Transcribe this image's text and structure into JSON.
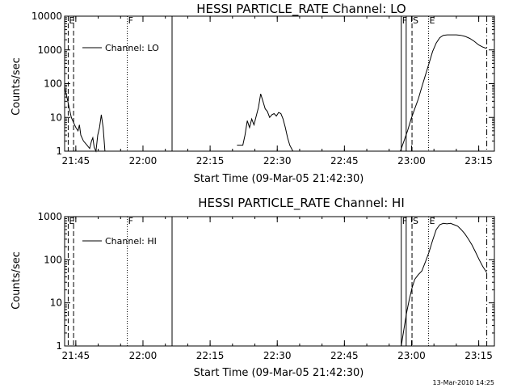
{
  "footer": {
    "timestamp": "13-Mar-2010 14:25"
  },
  "chart_data": [
    {
      "type": "line",
      "title": "HESSI PARTICLE_RATE Channel: LO",
      "xlabel": "Start Time (09-Mar-05 21:42:30)",
      "ylabel": "Counts/sec",
      "scale": "log",
      "xlim_minutes": [
        0,
        96
      ],
      "ylim": [
        1,
        10000
      ],
      "yticks": [
        {
          "value": 1,
          "label": "1"
        },
        {
          "value": 10,
          "label": "10"
        },
        {
          "value": 100,
          "label": "100"
        },
        {
          "value": 1000,
          "label": "1000"
        },
        {
          "value": 10000,
          "label": "10000"
        }
      ],
      "xticks": [
        {
          "minute": 2.5,
          "label": "21:45"
        },
        {
          "minute": 17.5,
          "label": "22:00"
        },
        {
          "minute": 32.5,
          "label": "22:15"
        },
        {
          "minute": 47.5,
          "label": "22:30"
        },
        {
          "minute": 62.5,
          "label": "22:45"
        },
        {
          "minute": 77.5,
          "label": "23:00"
        },
        {
          "minute": 92.5,
          "label": "23:15"
        }
      ],
      "legend": {
        "label": "Channel: LO",
        "position": "top-left"
      },
      "events": [
        {
          "minute": 0.8,
          "style": "dashed",
          "label": "E"
        },
        {
          "minute": 2.0,
          "style": "dashed",
          "label": ""
        },
        {
          "minute": 14.0,
          "style": "dotted",
          "label": "F"
        },
        {
          "minute": 24.0,
          "style": "solid",
          "label": ""
        },
        {
          "minute": 75.2,
          "style": "solid",
          "label": "F"
        },
        {
          "minute": 76.3,
          "style": "solid",
          "label": ""
        },
        {
          "minute": 77.6,
          "style": "dashed",
          "label": "S"
        },
        {
          "minute": 81.3,
          "style": "dotted",
          "label": "E"
        },
        {
          "minute": 94.3,
          "style": "dashdot",
          "label": ""
        }
      ],
      "series": [
        {
          "name": "Channel: LO",
          "segments": [
            [
              [
                0.0,
                80
              ],
              [
                0.5,
                40
              ],
              [
                1.0,
                20
              ],
              [
                1.5,
                10
              ],
              [
                2.0,
                7
              ],
              [
                2.5,
                5
              ],
              [
                3.0,
                4
              ],
              [
                3.3,
                6
              ],
              [
                3.6,
                3
              ],
              [
                4.2,
                2
              ],
              [
                5.0,
                1.5
              ],
              [
                5.6,
                1.2
              ],
              [
                6.0,
                2
              ],
              [
                6.3,
                2.5
              ],
              [
                6.6,
                1.3
              ],
              [
                7.0,
                1
              ],
              [
                7.4,
                3
              ],
              [
                7.8,
                5
              ],
              [
                8.2,
                12
              ],
              [
                8.6,
                5
              ],
              [
                9.0,
                1
              ]
            ],
            [
              [
                38.5,
                1.5
              ],
              [
                39.8,
                1.5
              ],
              [
                40.3,
                3
              ],
              [
                40.8,
                8
              ],
              [
                41.3,
                5
              ],
              [
                41.8,
                9
              ],
              [
                42.3,
                6
              ],
              [
                42.8,
                11
              ],
              [
                43.3,
                20
              ],
              [
                43.8,
                50
              ],
              [
                44.3,
                30
              ],
              [
                44.8,
                18
              ],
              [
                45.3,
                15
              ],
              [
                45.8,
                10
              ],
              [
                46.3,
                12
              ],
              [
                46.8,
                13
              ],
              [
                47.3,
                11
              ],
              [
                47.8,
                14
              ],
              [
                48.3,
                13
              ],
              [
                48.8,
                9
              ],
              [
                49.3,
                5
              ],
              [
                49.8,
                2.5
              ],
              [
                50.3,
                1.5
              ],
              [
                51.0,
                1
              ]
            ],
            [
              [
                75.0,
                1
              ],
              [
                75.8,
                2
              ],
              [
                76.6,
                4
              ],
              [
                77.4,
                9
              ],
              [
                78.2,
                18
              ],
              [
                79.0,
                35
              ],
              [
                79.8,
                80
              ],
              [
                80.6,
                180
              ],
              [
                81.4,
                400
              ],
              [
                82.2,
                900
              ],
              [
                83.0,
                1600
              ],
              [
                83.8,
                2300
              ],
              [
                84.6,
                2700
              ],
              [
                85.5,
                2800
              ],
              [
                86.5,
                2800
              ],
              [
                87.5,
                2800
              ],
              [
                88.5,
                2700
              ],
              [
                89.5,
                2500
              ],
              [
                90.5,
                2200
              ],
              [
                91.5,
                1800
              ],
              [
                92.5,
                1400
              ],
              [
                93.5,
                1200
              ],
              [
                94.3,
                1100
              ]
            ]
          ]
        }
      ]
    },
    {
      "type": "line",
      "title": "HESSI PARTICLE_RATE Channel: HI",
      "xlabel": "Start Time (09-Mar-05 21:42:30)",
      "ylabel": "Counts/sec",
      "scale": "log",
      "xlim_minutes": [
        0,
        96
      ],
      "ylim": [
        1,
        1000
      ],
      "yticks": [
        {
          "value": 1,
          "label": "1"
        },
        {
          "value": 10,
          "label": "10"
        },
        {
          "value": 100,
          "label": "100"
        },
        {
          "value": 1000,
          "label": "1000"
        }
      ],
      "xticks": [
        {
          "minute": 2.5,
          "label": "21:45"
        },
        {
          "minute": 17.5,
          "label": "22:00"
        },
        {
          "minute": 32.5,
          "label": "22:15"
        },
        {
          "minute": 47.5,
          "label": "22:30"
        },
        {
          "minute": 62.5,
          "label": "22:45"
        },
        {
          "minute": 77.5,
          "label": "23:00"
        },
        {
          "minute": 92.5,
          "label": "23:15"
        }
      ],
      "legend": {
        "label": "Channel: HI",
        "position": "top-left"
      },
      "events": [
        {
          "minute": 0.8,
          "style": "dashed",
          "label": "E"
        },
        {
          "minute": 2.0,
          "style": "dashed",
          "label": ""
        },
        {
          "minute": 14.0,
          "style": "dotted",
          "label": "F"
        },
        {
          "minute": 24.0,
          "style": "solid",
          "label": ""
        },
        {
          "minute": 75.2,
          "style": "solid",
          "label": "F"
        },
        {
          "minute": 76.3,
          "style": "solid",
          "label": ""
        },
        {
          "minute": 77.6,
          "style": "dashed",
          "label": "S"
        },
        {
          "minute": 81.3,
          "style": "dotted",
          "label": "E"
        },
        {
          "minute": 94.3,
          "style": "dashdot",
          "label": ""
        }
      ],
      "series": [
        {
          "name": "Channel: HI",
          "segments": [
            [
              [
                75.2,
                1
              ],
              [
                75.8,
                2.5
              ],
              [
                76.4,
                6
              ],
              [
                77.0,
                12
              ],
              [
                77.6,
                22
              ],
              [
                78.2,
                35
              ],
              [
                79.0,
                45
              ],
              [
                79.8,
                55
              ],
              [
                80.6,
                90
              ],
              [
                81.4,
                150
              ],
              [
                82.2,
                280
              ],
              [
                83.0,
                500
              ],
              [
                83.8,
                650
              ],
              [
                84.6,
                700
              ],
              [
                85.4,
                680
              ],
              [
                86.2,
                700
              ],
              [
                87.0,
                650
              ],
              [
                87.8,
                600
              ],
              [
                88.6,
                500
              ],
              [
                89.4,
                400
              ],
              [
                90.2,
                300
              ],
              [
                91.0,
                220
              ],
              [
                91.8,
                150
              ],
              [
                92.6,
                100
              ],
              [
                93.4,
                70
              ],
              [
                94.3,
                50
              ]
            ]
          ]
        }
      ]
    }
  ]
}
